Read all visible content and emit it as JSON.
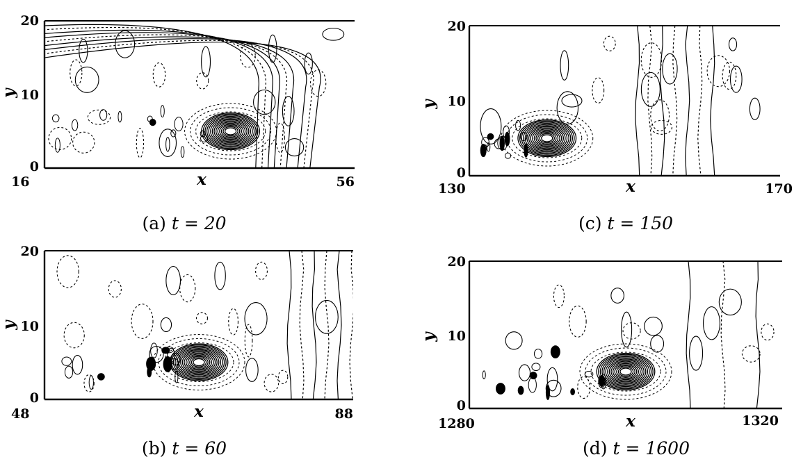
{
  "chart_data": [
    {
      "type": "contour",
      "caption": "(a)",
      "time_label": "t = 20",
      "xlabel": "x",
      "ylabel": "y",
      "xlim": [
        16,
        56
      ],
      "ylim": [
        0,
        20
      ],
      "x_ticks": [
        "16",
        "56"
      ],
      "y_ticks": [
        "0",
        "10",
        "20"
      ],
      "soliton_center": [
        40,
        5
      ]
    },
    {
      "type": "contour",
      "caption": "(b)",
      "time_label": "t = 60",
      "xlabel": "x",
      "ylabel": "y",
      "xlim": [
        48,
        88
      ],
      "ylim": [
        0,
        20
      ],
      "x_ticks": [
        "48",
        "88"
      ],
      "y_ticks": [
        "0",
        "10",
        "20"
      ],
      "soliton_center": [
        68,
        5
      ]
    },
    {
      "type": "contour",
      "caption": "(c)",
      "time_label": "t = 150",
      "xlabel": "x",
      "ylabel": "y",
      "xlim": [
        130,
        170
      ],
      "ylim": [
        0,
        20
      ],
      "x_ticks": [
        "130",
        "170"
      ],
      "y_ticks": [
        "0",
        "10",
        "20"
      ],
      "soliton_center": [
        140,
        5
      ]
    },
    {
      "type": "contour",
      "caption": "(d)",
      "time_label": "t = 1600",
      "xlabel": "x",
      "ylabel": "y",
      "xlim": [
        1280,
        1320
      ],
      "ylim": [
        0,
        20
      ],
      "x_ticks": [
        "1280",
        "1320"
      ],
      "y_ticks": [
        "0",
        "10",
        "20"
      ],
      "soliton_center": [
        1300,
        5
      ]
    }
  ]
}
